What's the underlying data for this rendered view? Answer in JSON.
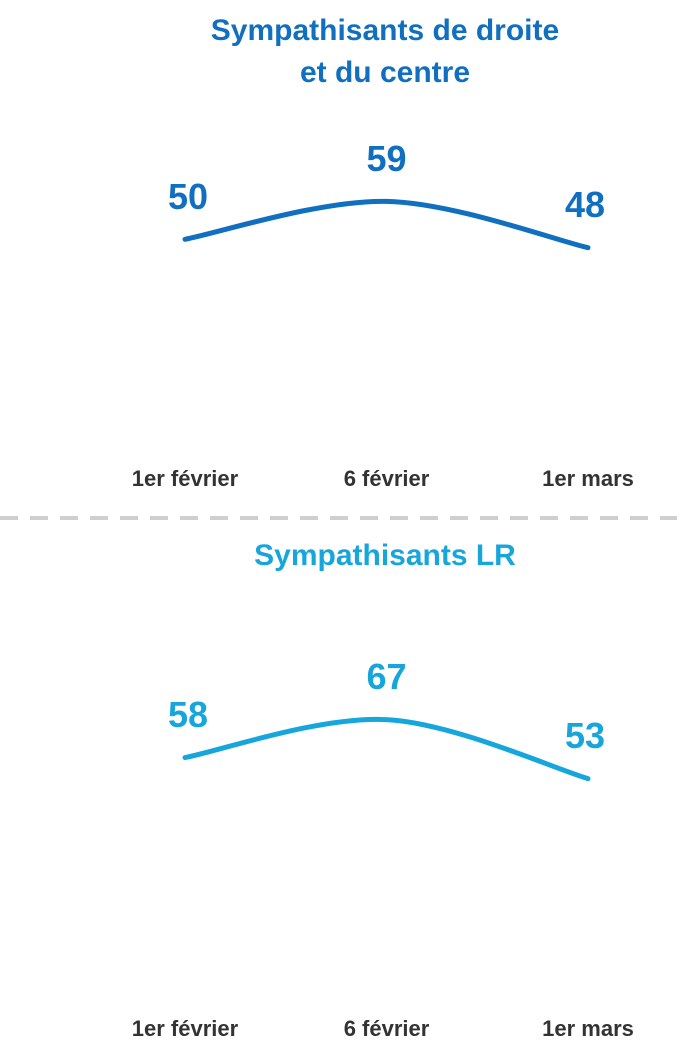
{
  "chart_data": [
    {
      "type": "line",
      "title": "Sympathisants de droite et du centre",
      "categories": [
        "1er février",
        "6 février",
        "1er mars"
      ],
      "series": [
        {
          "color": "#116fbf",
          "values": [
            50,
            59,
            48
          ]
        }
      ],
      "ylim": [
        0,
        70
      ]
    },
    {
      "type": "line",
      "title": "Sympathisants LR",
      "categories": [
        "1er février",
        "6 février",
        "1er mars"
      ],
      "series": [
        {
          "color": "#17a6dc",
          "values": [
            58,
            67,
            53
          ]
        }
      ],
      "ylim": [
        0,
        70
      ]
    }
  ]
}
